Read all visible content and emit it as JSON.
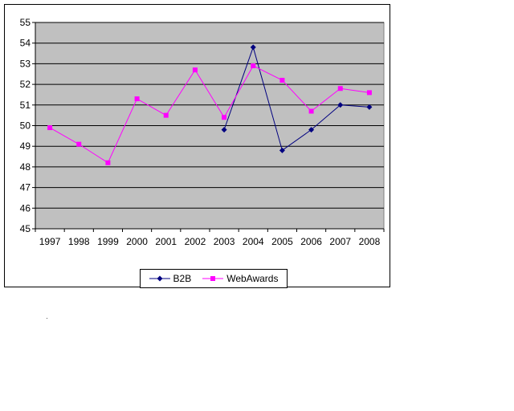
{
  "chart_data": {
    "type": "line",
    "categories": [
      "1997",
      "1998",
      "1999",
      "2000",
      "2001",
      "2002",
      "2003",
      "2004",
      "2005",
      "2006",
      "2007",
      "2008"
    ],
    "series": [
      {
        "name": "B2B",
        "color": "#000080",
        "marker": "diamond",
        "values": [
          null,
          null,
          null,
          null,
          null,
          null,
          49.8,
          53.8,
          48.8,
          49.8,
          51.0,
          50.9
        ]
      },
      {
        "name": "WebAwards",
        "color": "#ff00ff",
        "marker": "square",
        "values": [
          49.9,
          49.1,
          48.2,
          51.3,
          50.5,
          52.7,
          50.4,
          52.9,
          52.2,
          50.7,
          51.8,
          51.6
        ]
      }
    ],
    "ylim": [
      45,
      55
    ],
    "yticks": [
      45,
      46,
      47,
      48,
      49,
      50,
      51,
      52,
      53,
      54,
      55
    ],
    "grid": true,
    "plot_background": "#c0c0c0",
    "legend_position": "bottom",
    "title": "",
    "xlabel": "",
    "ylabel": ""
  }
}
